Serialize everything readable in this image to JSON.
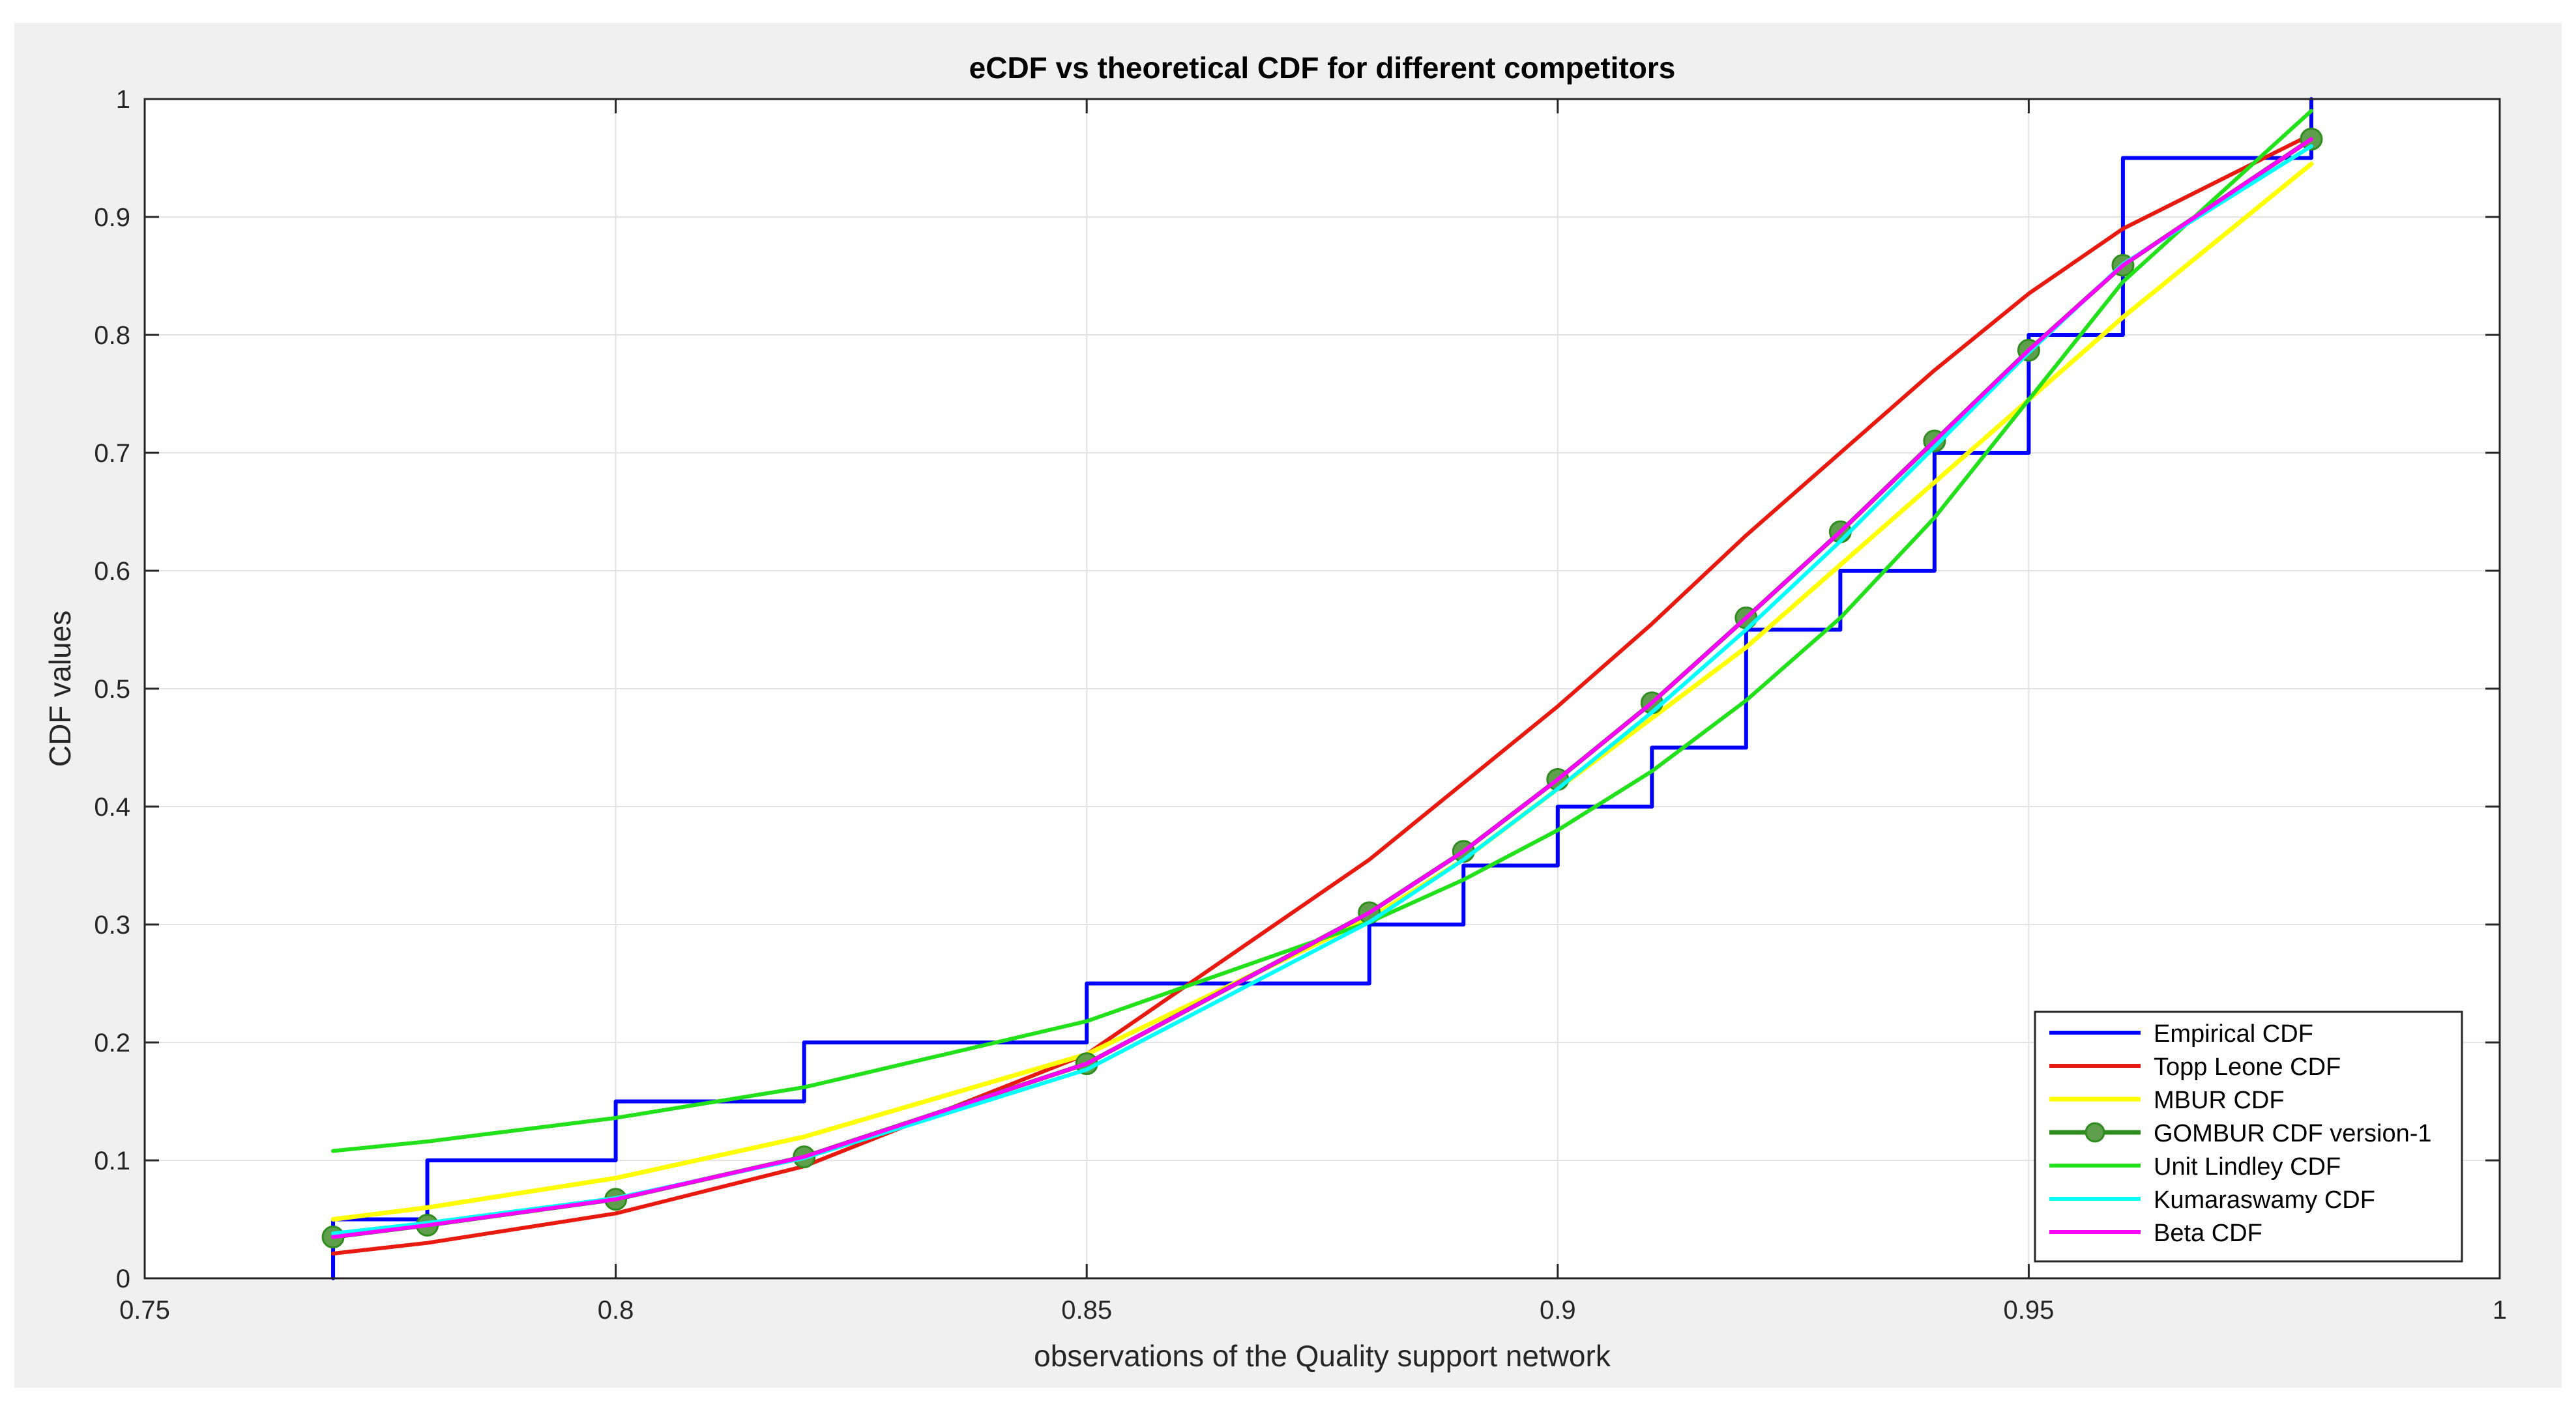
{
  "chart_data": {
    "type": "line",
    "title": "eCDF vs theoretical CDF for different competitors",
    "xlabel": "observations of the Quality support network",
    "ylabel": "CDF values",
    "xlim": [
      0.75,
      1
    ],
    "ylim": [
      0,
      1
    ],
    "xticks": [
      0.75,
      0.8,
      0.85,
      0.9,
      0.95,
      1
    ],
    "xtick_labels": [
      "0.75",
      "0.8",
      "0.85",
      "0.9",
      "0.95",
      "1"
    ],
    "yticks": [
      0,
      0.1,
      0.2,
      0.3,
      0.4,
      0.5,
      0.6,
      0.7,
      0.8,
      0.9,
      1
    ],
    "ytick_labels": [
      "0",
      "0.1",
      "0.2",
      "0.3",
      "0.4",
      "0.5",
      "0.6",
      "0.7",
      "0.8",
      "0.9",
      "1"
    ],
    "grid": true,
    "legend_position": "bottom-right",
    "series": [
      {
        "name": "Empirical CDF",
        "style": "step",
        "color": "#0000ff",
        "x": [
          0.77,
          0.78,
          0.8,
          0.82,
          0.85,
          0.88,
          0.89,
          0.9,
          0.91,
          0.92,
          0.93,
          0.94,
          0.95,
          0.96,
          0.98
        ],
        "y": [
          0.05,
          0.1,
          0.15,
          0.2,
          0.25,
          0.3,
          0.35,
          0.4,
          0.45,
          0.55,
          0.6,
          0.7,
          0.8,
          0.95,
          1.0
        ]
      },
      {
        "name": "Topp Leone CDF",
        "color": "#e8190f",
        "x": [
          0.77,
          0.78,
          0.8,
          0.82,
          0.85,
          0.88,
          0.89,
          0.9,
          0.91,
          0.92,
          0.93,
          0.94,
          0.95,
          0.96,
          0.98
        ],
        "y": [
          0.021,
          0.03,
          0.055,
          0.095,
          0.19,
          0.355,
          0.42,
          0.485,
          0.555,
          0.63,
          0.7,
          0.77,
          0.835,
          0.89,
          0.97
        ]
      },
      {
        "name": "MBUR CDF",
        "color": "#ffff00",
        "width": 7,
        "x": [
          0.77,
          0.78,
          0.8,
          0.82,
          0.85,
          0.88,
          0.89,
          0.9,
          0.91,
          0.92,
          0.93,
          0.94,
          0.95,
          0.96,
          0.98
        ],
        "y": [
          0.05,
          0.06,
          0.085,
          0.12,
          0.19,
          0.305,
          0.355,
          0.415,
          0.475,
          0.535,
          0.605,
          0.675,
          0.745,
          0.815,
          0.945
        ]
      },
      {
        "name": "GOMBUR CDF version-1",
        "color": "#2f8c1e",
        "marker_color": "#5f9e4c",
        "width": 7,
        "markers": true,
        "x": [
          0.77,
          0.78,
          0.8,
          0.82,
          0.85,
          0.88,
          0.89,
          0.9,
          0.91,
          0.92,
          0.93,
          0.94,
          0.95,
          0.96,
          0.98
        ],
        "y": [
          0.035,
          0.045,
          0.067,
          0.103,
          0.182,
          0.31,
          0.362,
          0.423,
          0.488,
          0.56,
          0.633,
          0.71,
          0.787,
          0.859,
          0.966
        ]
      },
      {
        "name": "Unit Lindley CDF",
        "color": "#22e01a",
        "x": [
          0.77,
          0.78,
          0.8,
          0.82,
          0.85,
          0.88,
          0.89,
          0.9,
          0.91,
          0.92,
          0.93,
          0.94,
          0.95,
          0.96,
          0.98
        ],
        "y": [
          0.108,
          0.116,
          0.136,
          0.162,
          0.218,
          0.302,
          0.338,
          0.38,
          0.43,
          0.49,
          0.56,
          0.645,
          0.745,
          0.845,
          0.99
        ]
      },
      {
        "name": "Kumaraswamy CDF",
        "color": "#00ffff",
        "x": [
          0.77,
          0.78,
          0.8,
          0.82,
          0.85,
          0.88,
          0.89,
          0.9,
          0.91,
          0.92,
          0.93,
          0.94,
          0.95,
          0.96,
          0.98
        ],
        "y": [
          0.038,
          0.047,
          0.068,
          0.102,
          0.177,
          0.302,
          0.355,
          0.415,
          0.48,
          0.55,
          0.625,
          0.705,
          0.785,
          0.86,
          0.96
        ]
      },
      {
        "name": "Beta CDF",
        "color": "#ff00ff",
        "x": [
          0.77,
          0.78,
          0.8,
          0.82,
          0.85,
          0.88,
          0.89,
          0.9,
          0.91,
          0.92,
          0.93,
          0.94,
          0.95,
          0.96,
          0.98
        ],
        "y": [
          0.035,
          0.045,
          0.067,
          0.103,
          0.182,
          0.31,
          0.362,
          0.423,
          0.488,
          0.56,
          0.633,
          0.71,
          0.787,
          0.859,
          0.966
        ]
      }
    ]
  }
}
